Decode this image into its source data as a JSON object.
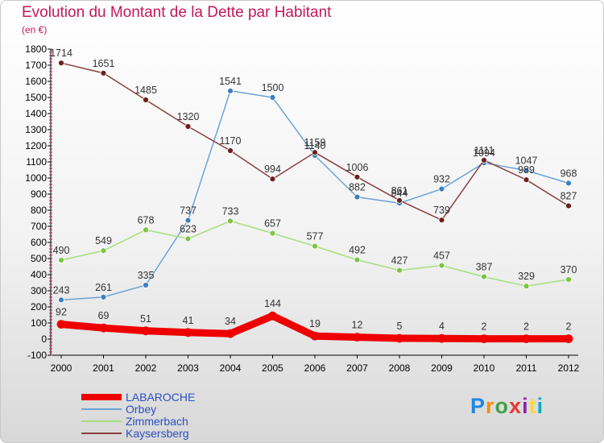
{
  "title": "Evolution du Montant de la Dette par Habitant",
  "subtitle": "(en €)",
  "logo": {
    "text": "Proxiti",
    "letter_colors": [
      "#1e88e5",
      "#fb8c00",
      "#43a047",
      "#e53935",
      "#8e24aa",
      "#fdd835",
      "#00acc1"
    ]
  },
  "chart_data": {
    "type": "line",
    "title": "Evolution du Montant de la Dette par Habitant",
    "subtitle": "(en €)",
    "x": [
      "2000",
      "2001",
      "2002",
      "2003",
      "2004",
      "2005",
      "2006",
      "2007",
      "2008",
      "2009",
      "2010",
      "2011",
      "2012"
    ],
    "ylim": [
      -100,
      1800
    ],
    "yticks": [
      -100,
      0,
      100,
      200,
      300,
      400,
      500,
      600,
      700,
      800,
      900,
      1000,
      1100,
      1200,
      1300,
      1400,
      1500,
      1600,
      1700,
      1800
    ],
    "grid": false,
    "legend_position": "bottom-left",
    "series": [
      {
        "name": "LABAROCHE",
        "color": "#ee0000",
        "marker_color": "#ee0000",
        "emphasis": true,
        "values": [
          92,
          69,
          51,
          41,
          34,
          144,
          19,
          12,
          5,
          4,
          2,
          2,
          2
        ],
        "labels": [
          "92",
          "69",
          "51",
          "41",
          "34",
          "144",
          "19",
          "12",
          "5",
          "4",
          "2",
          "2",
          "2"
        ]
      },
      {
        "name": "Orbey",
        "color": "#6ba3d6",
        "marker_color": "#3d7fc1",
        "values": [
          243,
          261,
          335,
          737,
          1541,
          1500,
          1140,
          882,
          844,
          932,
          1094,
          1047,
          968
        ],
        "labels": [
          "243",
          "261",
          "335",
          "737",
          "1541",
          "1500",
          "1140",
          "882",
          "844",
          "932",
          "1094",
          "1047",
          "968"
        ]
      },
      {
        "name": "Zimmerbach",
        "color": "#a8dd80",
        "marker_color": "#7cc443",
        "values": [
          490,
          549,
          678,
          623,
          733,
          657,
          577,
          492,
          427,
          457,
          387,
          329,
          370
        ],
        "labels": [
          "490",
          "549",
          "678",
          "623",
          "733",
          "657",
          "577",
          "492",
          "427",
          "457",
          "387",
          "329",
          "370"
        ]
      },
      {
        "name": "Kaysersberg",
        "color": "#8a4040",
        "marker_color": "#6d1f1f",
        "values": [
          1714,
          1651,
          1485,
          1320,
          1170,
          994,
          1159,
          1006,
          861,
          739,
          1111,
          989,
          827
        ],
        "labels": [
          "1714",
          "1651",
          "1485",
          "1320",
          "1170",
          "994",
          "1159",
          "1006",
          "861",
          "739",
          "1111",
          "989",
          "827"
        ]
      }
    ]
  }
}
